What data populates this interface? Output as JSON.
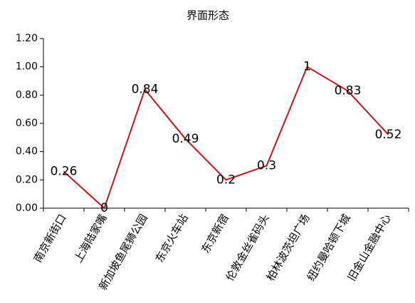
{
  "chart_data": {
    "type": "line",
    "title": "界面形态",
    "categories": [
      "南京新街口",
      "上海陆家嘴",
      "新加坡鱼尾狮公园",
      "东京火车站",
      "东京新宿",
      "伦敦金丝雀码头",
      "柏林波茨坦广场",
      "纽约曼哈顿下城",
      "旧金山金融中心"
    ],
    "values": [
      0.26,
      0,
      0.84,
      0.49,
      0.2,
      0.3,
      1,
      0.83,
      0.52
    ],
    "color": "#c0171d",
    "ylim": [
      0,
      1.2
    ],
    "yticks": [
      {
        "value": 0,
        "label": "0.00"
      },
      {
        "value": 0.2,
        "label": "0.20"
      },
      {
        "value": 0.4,
        "label": "0.40"
      },
      {
        "value": 0.6,
        "label": "0.60"
      },
      {
        "value": 0.8,
        "label": "0.80"
      },
      {
        "value": 1,
        "label": "1.00"
      },
      {
        "value": 1.2,
        "label": "1.20"
      }
    ]
  }
}
